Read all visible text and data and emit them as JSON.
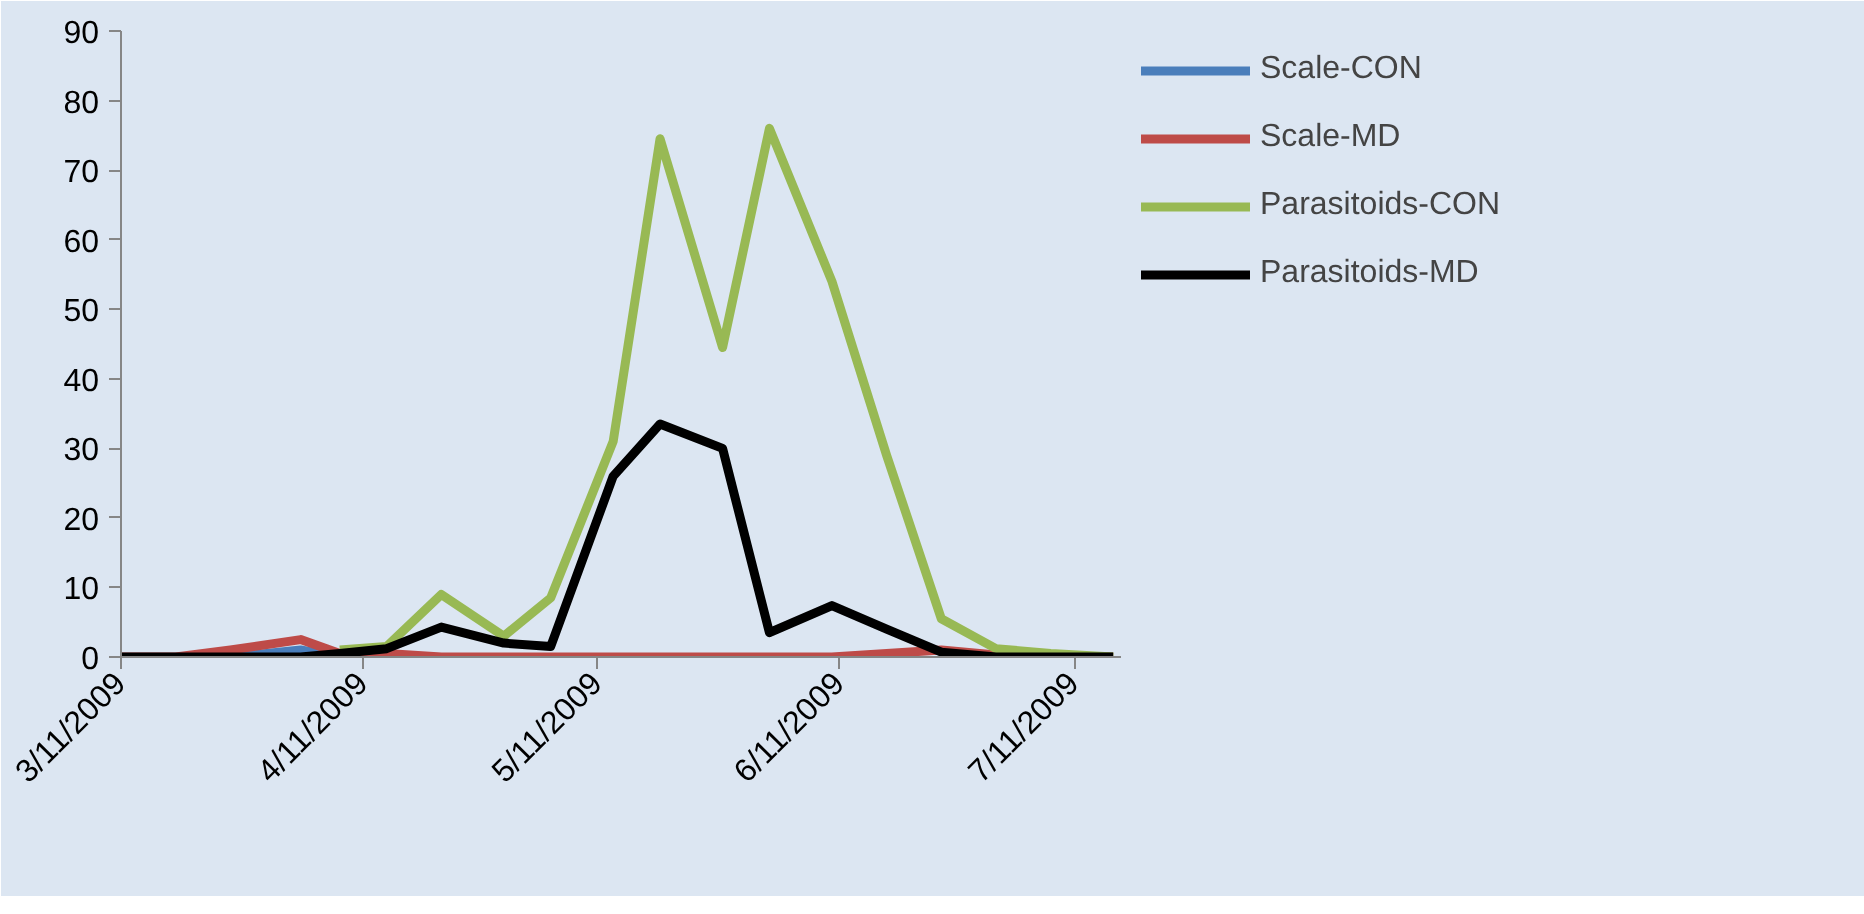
{
  "chart_data": {
    "type": "line",
    "x": [
      "2009-03-11",
      "2009-03-18",
      "2009-03-25",
      "2009-04-03",
      "2009-04-08",
      "2009-04-14",
      "2009-04-21",
      "2009-04-29",
      "2009-05-05",
      "2009-05-13",
      "2009-05-19",
      "2009-05-27",
      "2009-06-02",
      "2009-06-10",
      "2009-06-17",
      "2009-06-24",
      "2009-07-01",
      "2009-07-08",
      "2009-07-16"
    ],
    "series": [
      {
        "name": "Scale-CON",
        "color": "#4a7ebb",
        "values": [
          null,
          null,
          0,
          1,
          0,
          null,
          null,
          null,
          null,
          null,
          null,
          null,
          null,
          null,
          null,
          null,
          null,
          null,
          null
        ]
      },
      {
        "name": "Scale-MD",
        "color": "#be4b48",
        "values": [
          0,
          0,
          1,
          2.5,
          0.5,
          0.5,
          0,
          0,
          0,
          0,
          0,
          0,
          0,
          0,
          0.5,
          1,
          0.3,
          0,
          0
        ]
      },
      {
        "name": "Parasitoids-CON",
        "color": "#98b954",
        "values": [
          null,
          null,
          null,
          null,
          1,
          1.5,
          9,
          3,
          8.5,
          31,
          74.5,
          44.5,
          76,
          54,
          29,
          5.5,
          1.2,
          0.5,
          0
        ]
      },
      {
        "name": "Parasitoids-MD",
        "color": "#000000",
        "values": [
          0,
          0,
          0,
          0,
          0.5,
          1.2,
          4.3,
          2,
          1.5,
          26,
          33.5,
          30,
          3.5,
          7.4,
          4,
          0.7,
          0,
          0,
          0
        ]
      }
    ],
    "xlim": [
      "2009-03-11",
      "2009-07-17"
    ],
    "xticks": [
      {
        "value": "2009-03-11",
        "label": "3/11/2009"
      },
      {
        "value": "2009-04-11",
        "label": "4/11/2009"
      },
      {
        "value": "2009-05-11",
        "label": "5/11/2009"
      },
      {
        "value": "2009-06-11",
        "label": "6/11/2009"
      },
      {
        "value": "2009-07-11",
        "label": "7/11/2009"
      }
    ],
    "ylim": [
      0,
      90
    ],
    "yticks": [
      0,
      10,
      20,
      30,
      40,
      50,
      60,
      70,
      80,
      90
    ],
    "grid": false,
    "legend": "right",
    "marker": "none",
    "line_style": "solid"
  }
}
